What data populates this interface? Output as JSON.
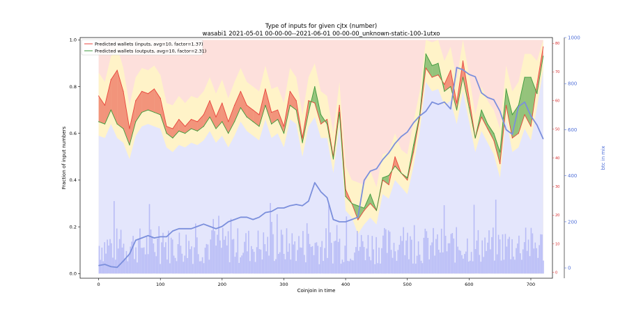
{
  "chart_data": {
    "type": "line",
    "title": "Type of inputs for given cjtx (number)",
    "subtitle": "wasabi1 2021-05-01 00-00-00--2021-06-01 00-00-00_unknown-static-100-1utxo",
    "xlabel": "Coinjoin in time",
    "ylabel": "Fraction of input numbers",
    "y2label": "btc in mix",
    "xlim": [
      -30,
      735
    ],
    "ylim": [
      -0.02,
      1.01
    ],
    "y2lim": [
      -45,
      1000
    ],
    "y3lim": [
      -2,
      82
    ],
    "x_ticks": [
      "0",
      "100",
      "200",
      "300",
      "400",
      "500",
      "600",
      "700"
    ],
    "y_ticks": [
      "0.0",
      "0.2",
      "0.4",
      "0.6",
      "0.8",
      "1.0"
    ],
    "y2_ticks": [
      "0",
      "200",
      "400",
      "600",
      "800",
      "1000"
    ],
    "y3_ticks": [
      "0",
      "10",
      "20",
      "30",
      "40",
      "50",
      "60",
      "70",
      "80"
    ],
    "legend_position": "top-left",
    "colors": {
      "inputs": "#e8453c",
      "outputs": "#3c9a3c",
      "btc": "#7b8fdc",
      "bg_pink": "#fde0dc",
      "bg_yellow": "#fff3c8",
      "bg_lavender": "#e4e6fc",
      "bars_blue": "#b0b4f4"
    },
    "series": [
      {
        "name": "Predicted wallets (inputs, avg=10, factor=1.37)",
        "x": [
          0,
          10,
          20,
          30,
          40,
          50,
          60,
          70,
          80,
          90,
          100,
          110,
          120,
          130,
          140,
          150,
          160,
          170,
          180,
          190,
          200,
          210,
          220,
          230,
          240,
          250,
          260,
          270,
          280,
          290,
          300,
          310,
          320,
          330,
          340,
          350,
          360,
          370,
          380,
          390,
          400,
          410,
          420,
          430,
          440,
          450,
          460,
          470,
          480,
          490,
          500,
          510,
          520,
          530,
          540,
          550,
          560,
          570,
          580,
          590,
          600,
          610,
          620,
          630,
          640,
          650,
          660,
          670,
          680,
          690,
          700,
          710,
          720
        ],
        "values": [
          0.76,
          0.72,
          0.83,
          0.87,
          0.78,
          0.62,
          0.74,
          0.78,
          0.77,
          0.79,
          0.75,
          0.63,
          0.62,
          0.66,
          0.63,
          0.66,
          0.65,
          0.68,
          0.74,
          0.67,
          0.73,
          0.65,
          0.72,
          0.78,
          0.72,
          0.7,
          0.68,
          0.79,
          0.69,
          0.7,
          0.63,
          0.78,
          0.74,
          0.58,
          0.74,
          0.73,
          0.64,
          0.66,
          0.5,
          0.72,
          0.36,
          0.3,
          0.23,
          0.27,
          0.3,
          0.27,
          0.4,
          0.38,
          0.5,
          0.43,
          0.4,
          0.52,
          0.67,
          0.88,
          0.84,
          0.85,
          0.81,
          0.87,
          0.73,
          0.91,
          0.75,
          0.58,
          0.67,
          0.62,
          0.57,
          0.47,
          0.72,
          0.58,
          0.6,
          0.68,
          0.63,
          0.81,
          0.97
        ]
      },
      {
        "name": "Predicted wallets (outputs, avg=10, factor=2.31)",
        "x": [
          0,
          10,
          20,
          30,
          40,
          50,
          60,
          70,
          80,
          90,
          100,
          110,
          120,
          130,
          140,
          150,
          160,
          170,
          180,
          190,
          200,
          210,
          220,
          230,
          240,
          250,
          260,
          270,
          280,
          290,
          300,
          310,
          320,
          330,
          340,
          350,
          360,
          370,
          380,
          390,
          400,
          410,
          420,
          430,
          440,
          450,
          460,
          470,
          480,
          490,
          500,
          510,
          520,
          530,
          540,
          550,
          560,
          570,
          580,
          590,
          600,
          610,
          620,
          630,
          640,
          650,
          660,
          670,
          680,
          690,
          700,
          710,
          720
        ],
        "values": [
          0.65,
          0.64,
          0.7,
          0.64,
          0.62,
          0.55,
          0.65,
          0.69,
          0.7,
          0.69,
          0.68,
          0.6,
          0.58,
          0.61,
          0.6,
          0.62,
          0.61,
          0.63,
          0.67,
          0.62,
          0.65,
          0.6,
          0.65,
          0.71,
          0.67,
          0.65,
          0.63,
          0.72,
          0.64,
          0.66,
          0.6,
          0.72,
          0.7,
          0.56,
          0.69,
          0.8,
          0.68,
          0.64,
          0.49,
          0.69,
          0.33,
          0.3,
          0.29,
          0.28,
          0.34,
          0.27,
          0.41,
          0.42,
          0.46,
          0.43,
          0.41,
          0.55,
          0.68,
          0.94,
          0.89,
          0.9,
          0.78,
          0.8,
          0.7,
          0.84,
          0.71,
          0.58,
          0.7,
          0.64,
          0.6,
          0.52,
          0.79,
          0.68,
          0.72,
          0.84,
          0.84,
          0.77,
          0.93
        ]
      },
      {
        "name": "btc in mix",
        "axis": "y2",
        "x": [
          0,
          10,
          20,
          30,
          40,
          50,
          60,
          70,
          80,
          90,
          100,
          110,
          120,
          130,
          140,
          150,
          160,
          170,
          180,
          190,
          200,
          210,
          220,
          230,
          240,
          250,
          260,
          270,
          280,
          290,
          300,
          310,
          320,
          330,
          340,
          350,
          360,
          370,
          380,
          390,
          400,
          410,
          420,
          430,
          440,
          450,
          460,
          470,
          480,
          490,
          500,
          510,
          520,
          530,
          540,
          550,
          560,
          570,
          580,
          590,
          600,
          610,
          620,
          630,
          640,
          650,
          660,
          670,
          680,
          690,
          700,
          710,
          720
        ],
        "values": [
          10,
          15,
          5,
          2,
          30,
          60,
          120,
          130,
          140,
          130,
          135,
          135,
          160,
          170,
          170,
          170,
          180,
          190,
          180,
          170,
          180,
          200,
          210,
          220,
          220,
          210,
          220,
          240,
          245,
          260,
          260,
          270,
          275,
          270,
          290,
          370,
          330,
          305,
          210,
          200,
          200,
          210,
          220,
          380,
          420,
          430,
          470,
          500,
          540,
          570,
          590,
          630,
          660,
          680,
          720,
          710,
          720,
          690,
          870,
          860,
          840,
          830,
          760,
          740,
          730,
          680,
          600,
          580,
          700,
          720,
          660,
          620,
          560
        ]
      }
    ]
  }
}
